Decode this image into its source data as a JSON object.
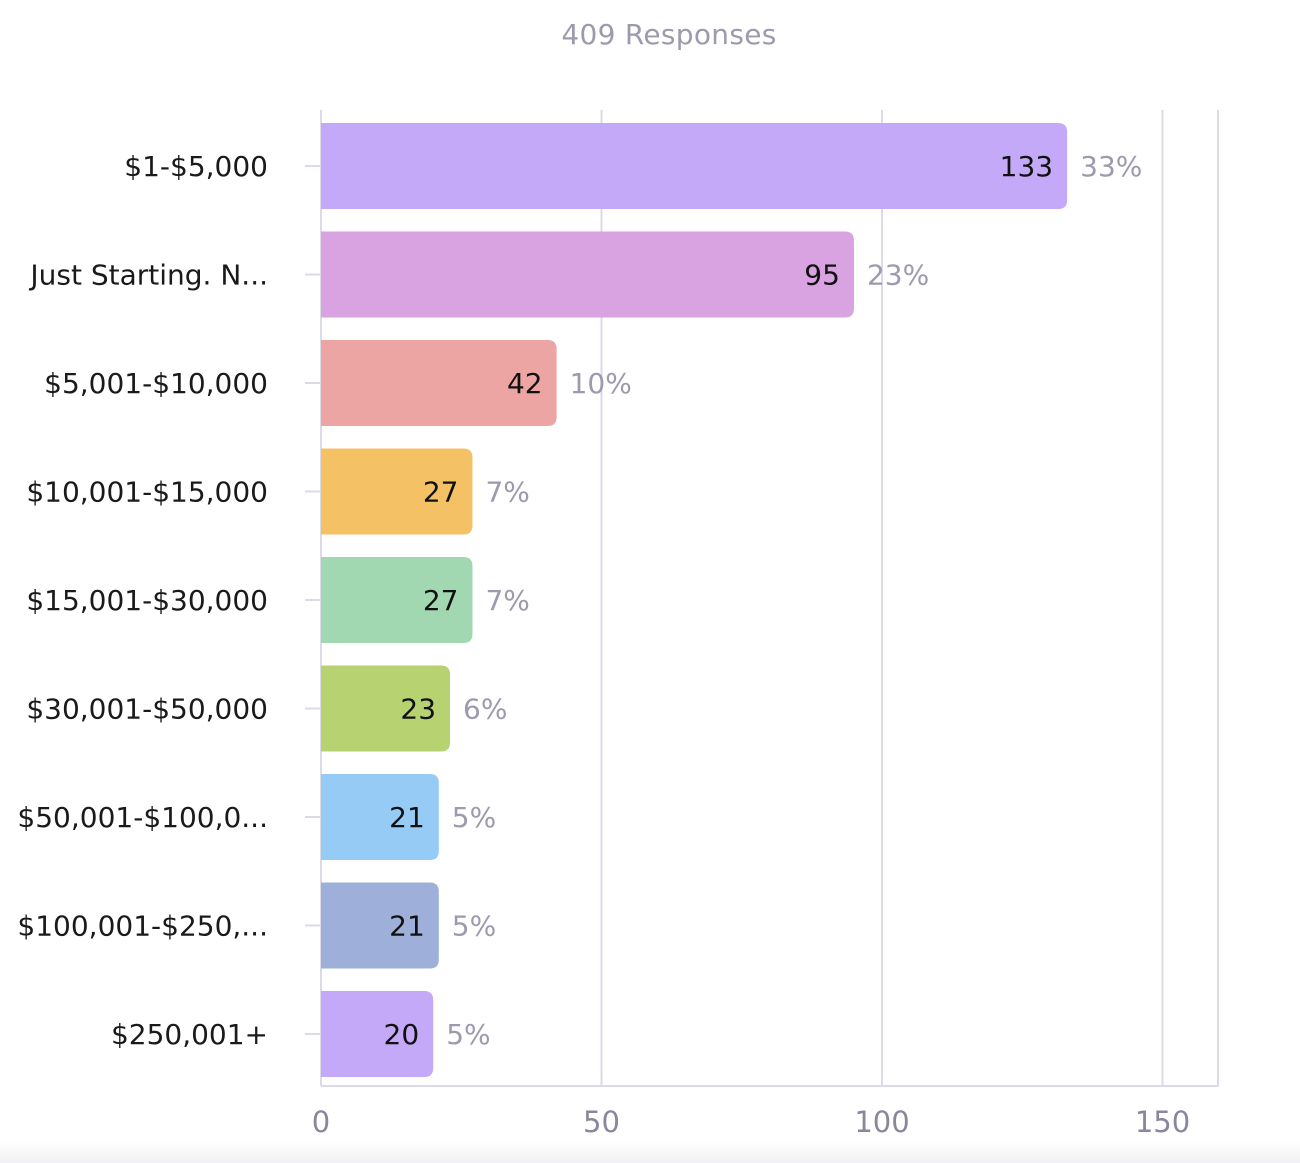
{
  "chart_data": {
    "type": "bar",
    "orientation": "horizontal",
    "title": "409 Responses",
    "xlabel": "",
    "ylabel": "",
    "xlim": [
      0,
      160
    ],
    "x_ticks": [
      0,
      50,
      100,
      150
    ],
    "grid": true,
    "categories": [
      "$1-$5,000",
      "Just Starting. N...",
      "$5,001-$10,000",
      "$10,001-$15,000",
      "$15,001-$30,000",
      "$30,001-$50,000",
      "$50,001-$100,0...",
      "$100,001-$250,...",
      "$250,001+"
    ],
    "values": [
      133,
      95,
      42,
      27,
      27,
      23,
      21,
      21,
      20
    ],
    "percent_labels": [
      "33%",
      "23%",
      "10%",
      "7%",
      "7%",
      "6%",
      "5%",
      "5%",
      "5%"
    ],
    "colors": [
      "#c3a9f7",
      "#d9a2e0",
      "#eda5a3",
      "#f4c264",
      "#a1d8b1",
      "#b7d270",
      "#96cbf5",
      "#9eb0d9",
      "#c3a9f7"
    ]
  },
  "colors": {
    "axis": "#dcdae6",
    "tick_text": "#8a879c",
    "category_text": "#1a1a1a",
    "value_text": "#111111",
    "percent_text": "#9d9aae"
  }
}
